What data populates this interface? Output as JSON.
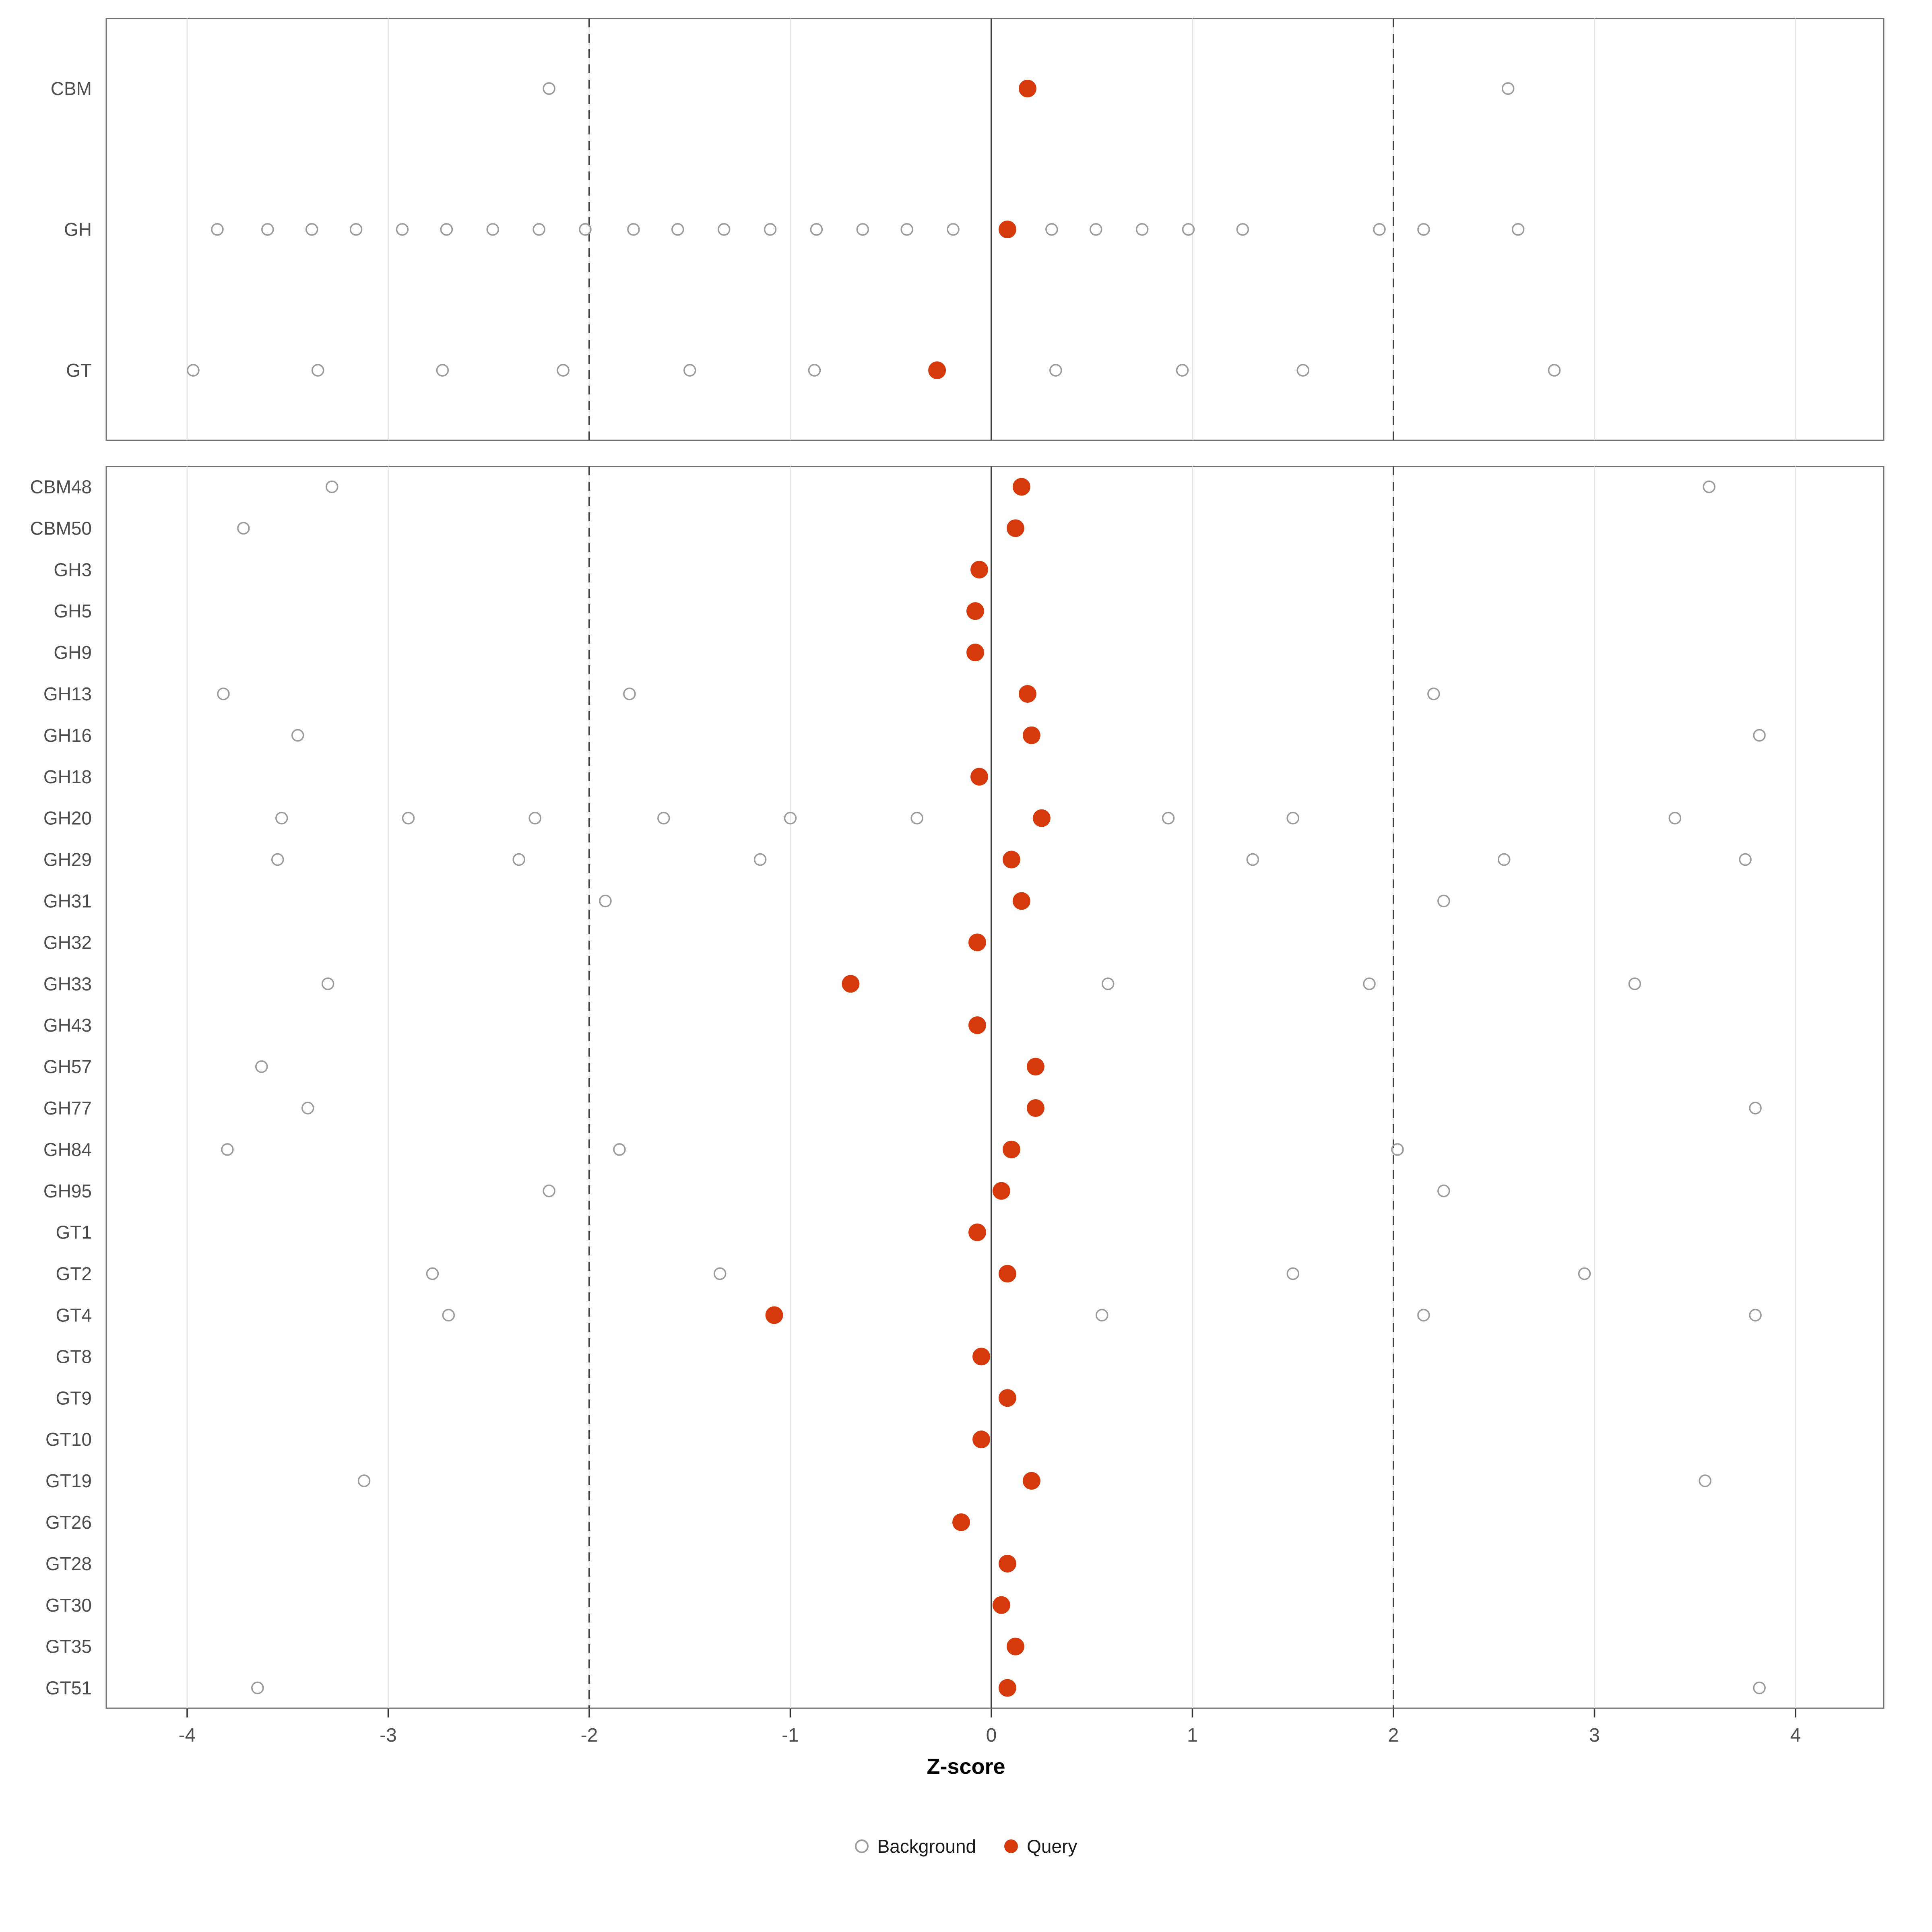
{
  "chart_data": {
    "type": "scatter",
    "title": "",
    "xlabel": "Z-score",
    "ylabel": "",
    "xlim": [
      -4.4,
      4.45
    ],
    "x_ticks": [
      -4,
      -3,
      -2,
      -1,
      0,
      1,
      2,
      3,
      4
    ],
    "x_tick_labels": [
      "-4",
      "-3",
      "-2",
      "-1",
      "0",
      "1",
      "2",
      "3",
      "4"
    ],
    "reference_lines": {
      "solid": [
        0
      ],
      "dashed": [
        -2,
        2
      ]
    },
    "grid": true,
    "legend_position": "bottom",
    "legend": [
      {
        "label": "Background",
        "marker": "open-circle",
        "color": "#9b9b9b"
      },
      {
        "label": "Query",
        "marker": "filled-circle",
        "color": "#D6390B"
      }
    ],
    "panels": [
      {
        "name": "summary",
        "rows": [
          {
            "label": "CBM",
            "query": 0.18,
            "background": [
              -2.2,
              2.57
            ]
          },
          {
            "label": "GH",
            "query": 0.08,
            "background": [
              -3.85,
              -3.6,
              -3.38,
              -3.16,
              -2.93,
              -2.71,
              -2.48,
              -2.25,
              -2.02,
              -1.78,
              -1.56,
              -1.33,
              -1.1,
              -0.87,
              -0.64,
              -0.42,
              -0.19,
              0.3,
              0.52,
              0.75,
              0.98,
              1.25,
              1.93,
              2.15,
              2.62
            ]
          },
          {
            "label": "GT",
            "query": -0.27,
            "background": [
              -3.97,
              -3.35,
              -2.73,
              -2.13,
              -1.5,
              -0.88,
              0.32,
              0.95,
              1.55,
              2.8
            ]
          }
        ]
      },
      {
        "name": "families",
        "rows": [
          {
            "label": "CBM48",
            "query": 0.15,
            "background": [
              -3.28,
              3.57
            ]
          },
          {
            "label": "CBM50",
            "query": 0.12,
            "background": [
              -3.72
            ]
          },
          {
            "label": "GH3",
            "query": -0.06,
            "background": []
          },
          {
            "label": "GH5",
            "query": -0.08,
            "background": []
          },
          {
            "label": "GH9",
            "query": -0.08,
            "background": []
          },
          {
            "label": "GH13",
            "query": 0.18,
            "background": [
              -3.82,
              -1.8,
              2.2
            ]
          },
          {
            "label": "GH16",
            "query": 0.2,
            "background": [
              -3.45,
              3.82
            ]
          },
          {
            "label": "GH18",
            "query": -0.06,
            "background": []
          },
          {
            "label": "GH20",
            "query": 0.25,
            "background": [
              -3.53,
              -2.9,
              -2.27,
              -1.63,
              -1.0,
              -0.37,
              0.88,
              1.5,
              3.4
            ]
          },
          {
            "label": "GH29",
            "query": 0.1,
            "background": [
              -3.55,
              -2.35,
              -1.15,
              1.3,
              2.55,
              3.75
            ]
          },
          {
            "label": "GH31",
            "query": 0.15,
            "background": [
              -1.92,
              2.25
            ]
          },
          {
            "label": "GH32",
            "query": -0.07,
            "background": []
          },
          {
            "label": "GH33",
            "query": -0.7,
            "background": [
              -3.3,
              0.58,
              1.88,
              3.2
            ]
          },
          {
            "label": "GH43",
            "query": -0.07,
            "background": []
          },
          {
            "label": "GH57",
            "query": 0.22,
            "background": [
              -3.63
            ]
          },
          {
            "label": "GH77",
            "query": 0.22,
            "background": [
              -3.4,
              3.8
            ]
          },
          {
            "label": "GH84",
            "query": 0.1,
            "background": [
              -3.8,
              -1.85,
              2.02
            ]
          },
          {
            "label": "GH95",
            "query": 0.05,
            "background": [
              -2.2,
              2.25
            ]
          },
          {
            "label": "GT1",
            "query": -0.07,
            "background": []
          },
          {
            "label": "GT2",
            "query": 0.08,
            "background": [
              -2.78,
              -1.35,
              1.5,
              2.95
            ]
          },
          {
            "label": "GT4",
            "query": -1.08,
            "background": [
              -2.7,
              0.55,
              2.15,
              3.8
            ]
          },
          {
            "label": "GT8",
            "query": -0.05,
            "background": []
          },
          {
            "label": "GT9",
            "query": 0.08,
            "background": []
          },
          {
            "label": "GT10",
            "query": -0.05,
            "background": []
          },
          {
            "label": "GT19",
            "query": 0.2,
            "background": [
              -3.12,
              3.55
            ]
          },
          {
            "label": "GT26",
            "query": -0.15,
            "background": []
          },
          {
            "label": "GT28",
            "query": 0.08,
            "background": []
          },
          {
            "label": "GT30",
            "query": 0.05,
            "background": []
          },
          {
            "label": "GT35",
            "query": 0.12,
            "background": []
          },
          {
            "label": "GT51",
            "query": 0.08,
            "background": [
              -3.65,
              3.82
            ]
          }
        ]
      }
    ]
  },
  "colors": {
    "query": "#D6390B",
    "background_stroke": "#9b9b9b",
    "grid": "#E6E6E6",
    "axis_text": "#4D4D4D",
    "ref_line": "#404040",
    "panel_border": "#737373",
    "tick_mark": "#333333"
  }
}
